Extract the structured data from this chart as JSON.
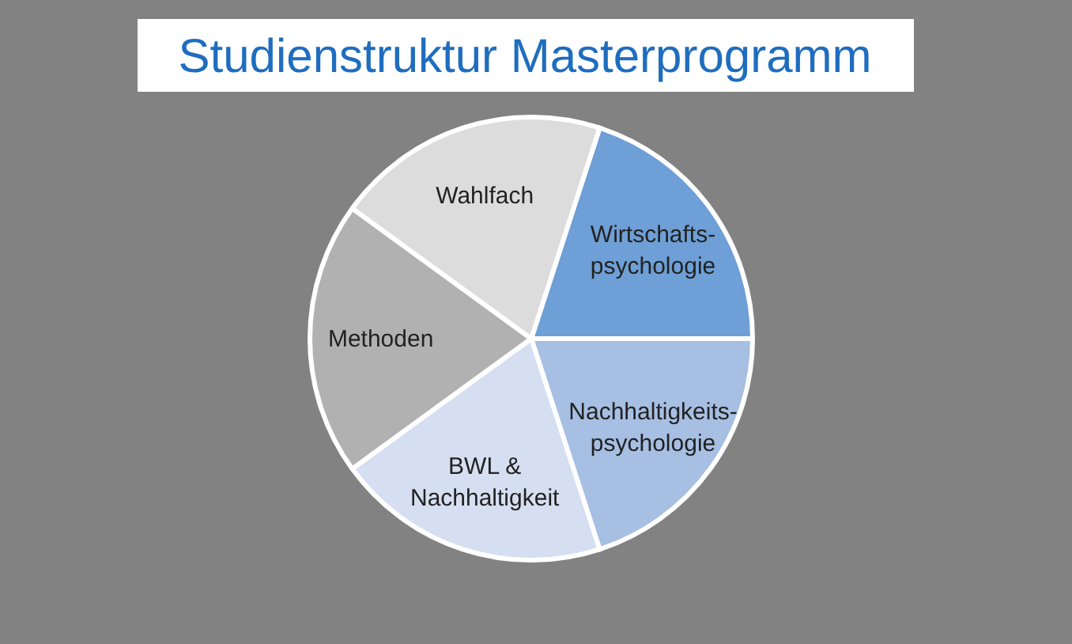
{
  "chart_data": {
    "type": "pie",
    "title": "Studienstruktur Masterprogramm",
    "categories": [
      "Wirtschafts-\npsychologie",
      "Nachhaltigkeits-\npsychologie",
      "BWL &\nNachhaltigkeit",
      "Methoden",
      "Wahlfach"
    ],
    "values": [
      20,
      20,
      20,
      20,
      20
    ],
    "colors": [
      "#6e9fd6",
      "#a6bfe3",
      "#d5dff1",
      "#b1b1b1",
      "#dcdcdc"
    ],
    "legend": false
  }
}
